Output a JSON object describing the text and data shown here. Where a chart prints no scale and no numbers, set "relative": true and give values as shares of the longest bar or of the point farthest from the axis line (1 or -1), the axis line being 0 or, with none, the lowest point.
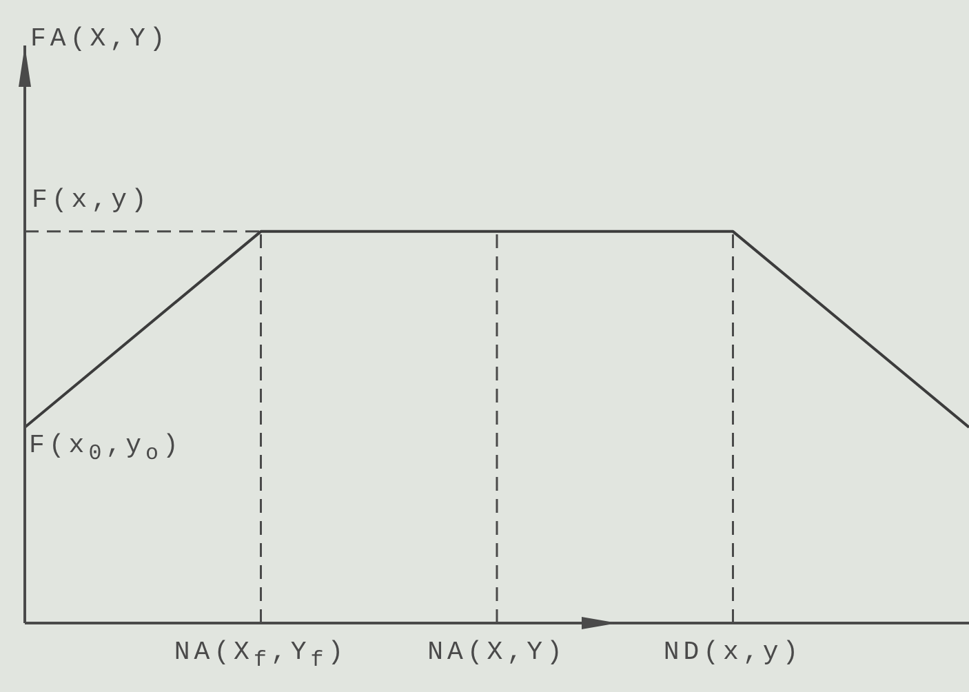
{
  "chart_data": {
    "type": "line",
    "relative": true,
    "categories": [
      null,
      "NA(X$_{f}$,Y$_{f}$)",
      "NA(X,Y)",
      "ND(x,y)",
      null
    ],
    "values": [
      0.5,
      1,
      1,
      1,
      0.5
    ],
    "color": "#3c3c3c",
    "ref_lines": [
      {
        "axis": "y",
        "value": 1,
        "label": "F(x,y)",
        "line_style": "dashed",
        "color": "#4a4a4a"
      },
      {
        "axis": "x",
        "value": "NA(X$_{f}$,Y$_{f}$)",
        "line_style": "dashed",
        "color": "#4a4a4a"
      },
      {
        "axis": "x",
        "value": "NA(X,Y)",
        "line_style": "dashed",
        "color": "#4a4a4a"
      },
      {
        "axis": "x",
        "value": "ND(x,y)",
        "line_style": "dashed",
        "color": "#4a4a4a"
      }
    ],
    "annotations": [
      "FA(X,Y)",
      "F(x$_{0}$,y$_{o}$)"
    ]
  }
}
